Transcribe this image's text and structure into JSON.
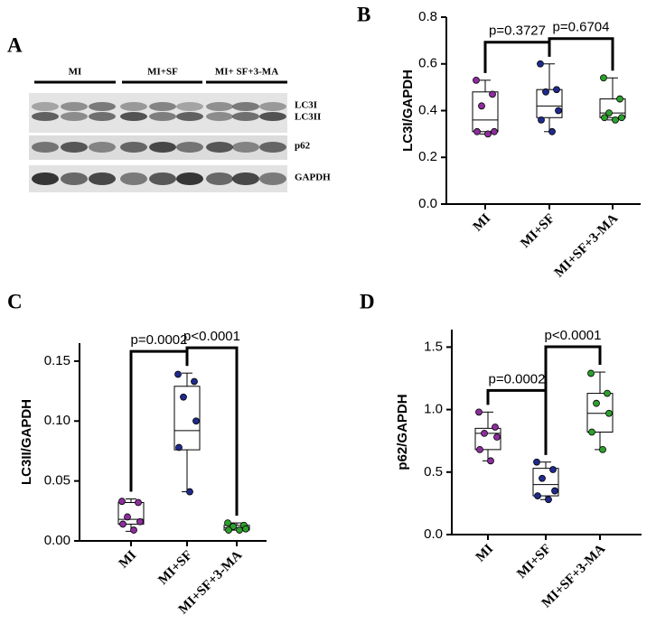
{
  "panel_a": {
    "label": "A",
    "groups": [
      "MI",
      "MI+SF",
      "MI+ SF+3-MA"
    ],
    "bands": [
      "LC3I",
      "LC3II",
      "p62",
      "GAPDH"
    ]
  },
  "chart_data": [
    {
      "type": "box",
      "panel": "B",
      "ylabel": "LC3I/GAPDH",
      "categories": [
        "MI",
        "MI+SF",
        "MI+SF+3-MA"
      ],
      "ylim": [
        0,
        0.8
      ],
      "yticks": [
        {
          "value": 0,
          "label": "0.0"
        },
        {
          "value": 0.2,
          "label": "0.2"
        },
        {
          "value": 0.4,
          "label": "0.4"
        },
        {
          "value": 0.6,
          "label": "0.6"
        },
        {
          "value": 0.8,
          "label": "0.8"
        }
      ],
      "boxes": [
        {
          "color": "#8e2d9e",
          "min": 0.3,
          "q1": 0.31,
          "median": 0.36,
          "q3": 0.48,
          "max": 0.53,
          "points": [
            0.53,
            0.47,
            0.42,
            0.31,
            0.31,
            0.3
          ]
        },
        {
          "color": "#1f2a8c",
          "min": 0.31,
          "q1": 0.37,
          "median": 0.42,
          "q3": 0.49,
          "max": 0.6,
          "points": [
            0.6,
            0.49,
            0.48,
            0.4,
            0.36,
            0.31
          ]
        },
        {
          "color": "#2ca02c",
          "min": 0.36,
          "q1": 0.37,
          "median": 0.39,
          "q3": 0.45,
          "max": 0.54,
          "points": [
            0.54,
            0.45,
            0.39,
            0.37,
            0.37,
            0.36
          ]
        }
      ],
      "annotations": [
        "p=0.3727",
        "p=0.6704"
      ]
    },
    {
      "type": "box",
      "panel": "C",
      "ylabel": "LC3II/GAPDH",
      "categories": [
        "MI",
        "MI+SF",
        "MI+SF+3-MA"
      ],
      "ylim": [
        0,
        0.165
      ],
      "yticks": [
        {
          "value": 0,
          "label": "0.00"
        },
        {
          "value": 0.05,
          "label": "0.05"
        },
        {
          "value": 0.1,
          "label": "0.10"
        },
        {
          "value": 0.15,
          "label": "0.15"
        }
      ],
      "boxes": [
        {
          "color": "#8e2d9e",
          "min": 0.008,
          "q1": 0.014,
          "median": 0.018,
          "q3": 0.032,
          "max": 0.035,
          "points": [
            0.033,
            0.032,
            0.02,
            0.016,
            0.014,
            0.009
          ]
        },
        {
          "color": "#1f2a8c",
          "min": 0.041,
          "q1": 0.076,
          "median": 0.092,
          "q3": 0.129,
          "max": 0.14,
          "points": [
            0.139,
            0.133,
            0.12,
            0.1,
            0.078,
            0.041
          ]
        },
        {
          "color": "#2ca02c",
          "min": 0.009,
          "q1": 0.009,
          "median": 0.011,
          "q3": 0.013,
          "max": 0.015,
          "points": [
            0.015,
            0.013,
            0.012,
            0.01,
            0.009,
            0.009
          ]
        }
      ],
      "annotations": [
        "p=0.0002",
        "p<0.0001"
      ]
    },
    {
      "type": "box",
      "panel": "D",
      "ylabel": "p62/GAPDH",
      "categories": [
        "MI",
        "MI+SF",
        "MI+SF+3-MA"
      ],
      "ylim": [
        0,
        1.64
      ],
      "yticks": [
        {
          "value": 0,
          "label": "0.0"
        },
        {
          "value": 0.5,
          "label": "0.5"
        },
        {
          "value": 1,
          "label": "1.0"
        },
        {
          "value": 1.5,
          "label": "1.5"
        }
      ],
      "boxes": [
        {
          "color": "#8e2d9e",
          "min": 0.59,
          "q1": 0.68,
          "median": 0.81,
          "q3": 0.85,
          "max": 0.98,
          "points": [
            0.98,
            0.86,
            0.81,
            0.78,
            0.68,
            0.59
          ]
        },
        {
          "color": "#1f2a8c",
          "min": 0.28,
          "q1": 0.31,
          "median": 0.4,
          "q3": 0.53,
          "max": 0.58,
          "points": [
            0.58,
            0.52,
            0.45,
            0.35,
            0.31,
            0.28
          ]
        },
        {
          "color": "#2ca02c",
          "min": 0.68,
          "q1": 0.82,
          "median": 0.97,
          "q3": 1.13,
          "max": 1.3,
          "points": [
            1.29,
            1.13,
            1.05,
            0.97,
            0.82,
            0.68
          ]
        }
      ],
      "annotations": [
        "p=0.0002",
        "p<0.0001"
      ]
    }
  ]
}
